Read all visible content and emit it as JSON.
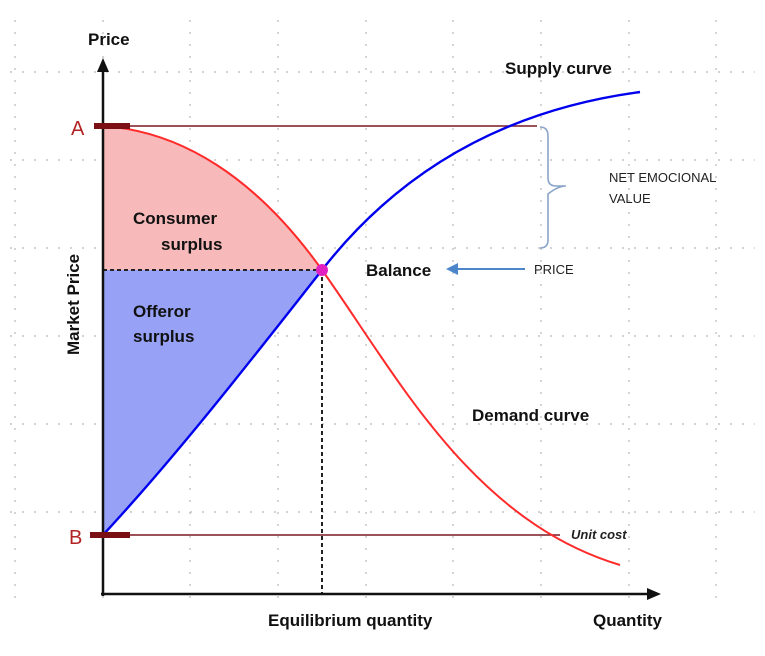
{
  "labels": {
    "y_axis": "Price",
    "y_axis_side": "Market Price",
    "x_axis": "Quantity",
    "x_equilibrium": "Equilibrium quantity",
    "point_a": "A",
    "point_b": "B",
    "supply_curve": "Supply curve",
    "demand_curve": "Demand curve",
    "consumer_surplus_line1": "Consumer",
    "consumer_surplus_line2": "surplus",
    "offeror_surplus_line1": "Offeror",
    "offeror_surplus_line2": "surplus",
    "balance": "Balance",
    "price": "PRICE",
    "net_emotional_line1": "NET EMOCIONAL",
    "net_emotional_line2": "VALUE",
    "unit_cost": "Unit cost"
  },
  "colors": {
    "supply": "#0000ee",
    "demand": "#ff2a2a",
    "consumer_fill": "#f7b9b9",
    "offeror_fill": "#97a2f7",
    "level_lines": "#7a1a22",
    "marker": "#7a1014",
    "equilibrium_point": "#e020c0",
    "arrow": "#4a86c8",
    "brace": "#8aa4c8",
    "grid_dots": "#aaaaaa"
  }
}
